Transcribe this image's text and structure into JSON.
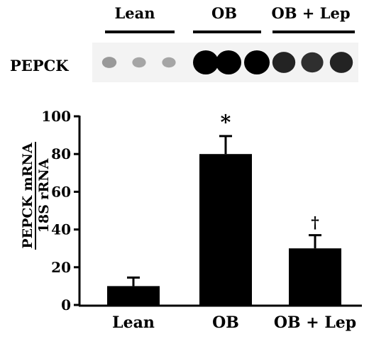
{
  "blot": {
    "row_label": "PEPCK",
    "groups": [
      {
        "label": "Lean",
        "band_intensity": [
          0.35,
          0.3,
          0.3
        ]
      },
      {
        "label": "OB",
        "band_intensity": [
          1.0,
          1.0,
          1.0
        ]
      },
      {
        "label": "OB + Lep",
        "band_intensity": [
          0.85,
          0.8,
          0.85
        ]
      }
    ]
  },
  "chart_data": {
    "type": "bar",
    "categories": [
      "Lean",
      "OB",
      "OB + Lep"
    ],
    "values": [
      10,
      80,
      30
    ],
    "errors": [
      4.5,
      9.5,
      7
    ],
    "annotations": [
      "",
      "*",
      "†"
    ],
    "ylabel_top": "PEPCK mRNA",
    "ylabel_bottom": "18S rRNA",
    "ylim": [
      0,
      100
    ],
    "yticks": [
      0,
      20,
      40,
      60,
      80,
      100
    ],
    "grid": false,
    "bar_color": "#000000"
  }
}
